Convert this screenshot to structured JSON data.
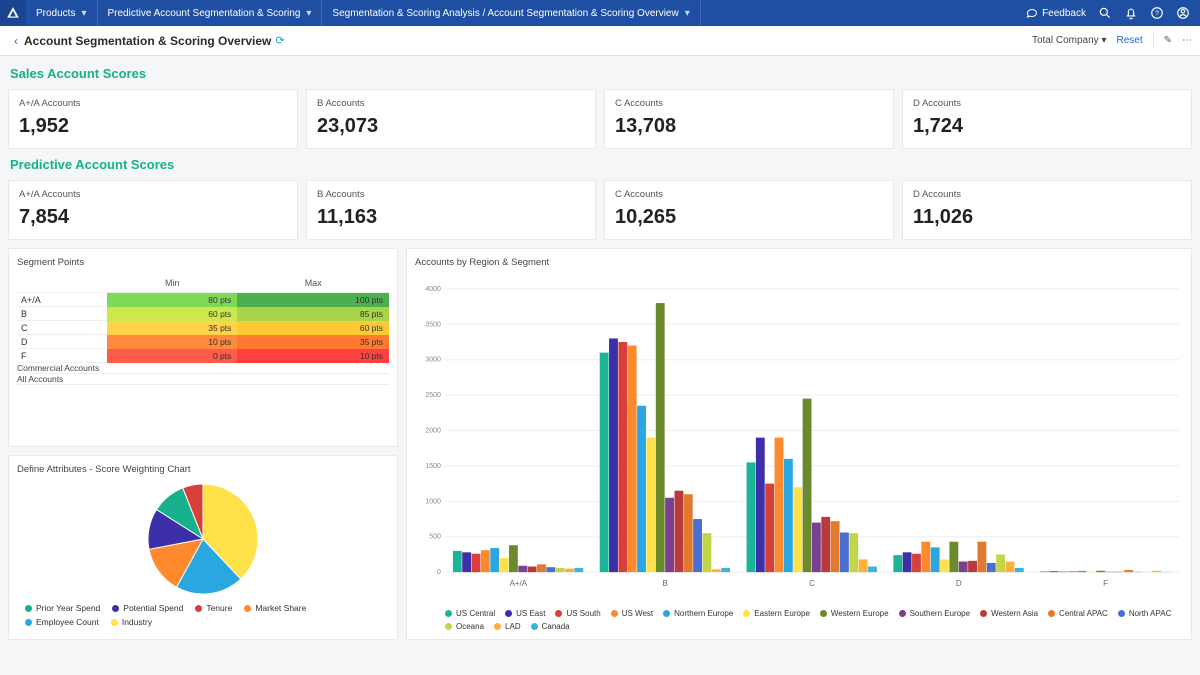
{
  "topnav": {
    "products_label": "Products",
    "module_label": "Predictive Account Segmentation & Scoring",
    "breadcrumb_label": "Segmentation & Scoring Analysis / Account Segmentation & Scoring Overview",
    "feedback_label": "Feedback"
  },
  "subheader": {
    "page_title": "Account Segmentation & Scoring Overview",
    "company_label": "Total Company",
    "reset_label": "Reset"
  },
  "sections": {
    "sales_title": "Sales Account Scores",
    "predictive_title": "Predictive Account Scores"
  },
  "sales_kpis": [
    {
      "label": "A+/A Accounts",
      "value": "1,952"
    },
    {
      "label": "B Accounts",
      "value": "23,073"
    },
    {
      "label": "C Accounts",
      "value": "13,708"
    },
    {
      "label": "D Accounts",
      "value": "1,724"
    }
  ],
  "predictive_kpis": [
    {
      "label": "A+/A Accounts",
      "value": "7,854"
    },
    {
      "label": "B Accounts",
      "value": "11,163"
    },
    {
      "label": "C Accounts",
      "value": "10,265"
    },
    {
      "label": "D Accounts",
      "value": "11,026"
    }
  ],
  "segment_points": {
    "title": "Segment Points",
    "col_min": "Min",
    "col_max": "Max",
    "rows": [
      {
        "label": "A+/A",
        "min": "80 pts",
        "max": "100 pts",
        "min_color": "#7ed957",
        "max_color": "#4caf50"
      },
      {
        "label": "B",
        "min": "60 pts",
        "max": "85 pts",
        "min_color": "#cde84a",
        "max_color": "#a8d44a"
      },
      {
        "label": "C",
        "min": "35 pts",
        "max": "60 pts",
        "min_color": "#ffd24a",
        "max_color": "#ffc933"
      },
      {
        "label": "D",
        "min": "10 pts",
        "max": "35 pts",
        "min_color": "#ff8a3d",
        "max_color": "#ff7a2e"
      },
      {
        "label": "F",
        "min": "0 pts",
        "max": "10 pts",
        "min_color": "#ff5a4a",
        "max_color": "#ff4040"
      }
    ],
    "commercial_label": "Commercial Accounts",
    "all_label": "All Accounts"
  },
  "pie": {
    "title": "Define Attributes - Score Weighting Chart",
    "slices": [
      {
        "label": "Industry",
        "value": 38,
        "color": "#ffe24a"
      },
      {
        "label": "Employee Count",
        "value": 20,
        "color": "#2aa7e0"
      },
      {
        "label": "Market Share",
        "value": 14,
        "color": "#ff8a2e"
      },
      {
        "label": "Potential Spend",
        "value": 12,
        "color": "#3c2fa8"
      },
      {
        "label": "Prior Year Spend",
        "value": 10,
        "color": "#17b08c"
      },
      {
        "label": "Tenure",
        "value": 6,
        "color": "#d83f3a"
      }
    ],
    "legend_order": [
      "Prior Year Spend",
      "Potential Spend",
      "Tenure",
      "Market Share",
      "Employee Count",
      "Industry"
    ]
  },
  "bar": {
    "title": "Accounts by Region & Segment",
    "ymax": 4000,
    "ytick_step": 500,
    "groups": [
      "A+/A",
      "B",
      "C",
      "D",
      "F"
    ],
    "regions": [
      {
        "label": "US Central",
        "color": "#1db598"
      },
      {
        "label": "US East",
        "color": "#3c2fa8"
      },
      {
        "label": "US South",
        "color": "#d83f3a"
      },
      {
        "label": "US West",
        "color": "#ff8a2e"
      },
      {
        "label": "Northern Europe",
        "color": "#2aa7e0"
      },
      {
        "label": "Eastern Europe",
        "color": "#ffe24a"
      },
      {
        "label": "Western Europe",
        "color": "#6a8a2e"
      },
      {
        "label": "Southern Europe",
        "color": "#7d3f8f"
      },
      {
        "label": "Western Asia",
        "color": "#b83a3a"
      },
      {
        "label": "Central APAC",
        "color": "#e07a2e"
      },
      {
        "label": "North APAC",
        "color": "#4a6fd0"
      },
      {
        "label": "Oceana",
        "color": "#c2d44a"
      },
      {
        "label": "LAD",
        "color": "#ffb03a"
      },
      {
        "label": "Canada",
        "color": "#3fb3d9"
      }
    ],
    "data": {
      "A+/A": [
        300,
        280,
        260,
        310,
        340,
        200,
        380,
        90,
        80,
        110,
        70,
        60,
        50,
        60
      ],
      "B": [
        3100,
        3300,
        3250,
        3200,
        2350,
        1900,
        3800,
        1050,
        1150,
        1100,
        750,
        550,
        40,
        60
      ],
      "C": [
        1550,
        1900,
        1250,
        1900,
        1600,
        1200,
        2450,
        700,
        780,
        720,
        560,
        550,
        180,
        80
      ],
      "D": [
        240,
        280,
        260,
        430,
        350,
        180,
        430,
        150,
        160,
        430,
        130,
        250,
        150,
        60
      ],
      "F": [
        10,
        12,
        8,
        15,
        18,
        6,
        20,
        5,
        5,
        30,
        4,
        3,
        20,
        3
      ]
    }
  },
  "colors": {
    "brand_blue": "#1e4fa3",
    "accent": "#17b08c",
    "background": "#f5f6f8",
    "border": "#e6e8ec"
  }
}
